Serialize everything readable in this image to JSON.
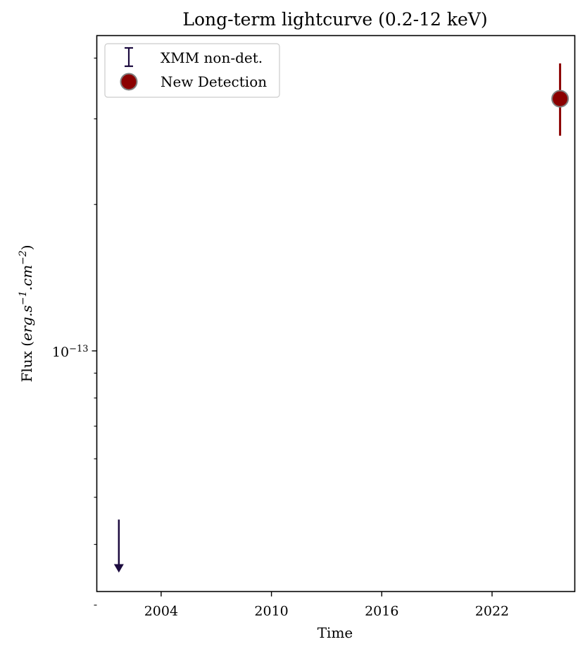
{
  "chart_data": {
    "type": "scatter",
    "title": "Long-term lightcurve (0.2-12 keV)",
    "xlabel": "Time",
    "ylabel": "Flux (erg.s⁻¹.cm⁻²)",
    "ylabel_parts": {
      "prefix": "Flux (",
      "base1": "erg.s",
      "sup1": "−1",
      "base2": ".cm",
      "sup2": "−2",
      "suffix": ")"
    },
    "x_scale": "time",
    "y_scale": "log",
    "xlim": [
      2000.5,
      2026.5
    ],
    "ylim": [
      3.2e-14,
      4.45e-13
    ],
    "x_ticks": [
      2004,
      2010,
      2016,
      2022
    ],
    "x_tick_labels": [
      "2004",
      "2010",
      "2016",
      "2022"
    ],
    "y_major_ticks": [
      1e-13
    ],
    "y_tick_label": {
      "base": "10",
      "exp": "−13"
    },
    "y_minor_ticks": [
      3e-14,
      4e-14,
      5e-14,
      6e-14,
      7e-14,
      8e-14,
      9e-14,
      2e-13,
      3e-13,
      4e-13
    ],
    "grid": false,
    "legend": {
      "placement": "top-left",
      "entries": [
        {
          "label": "XMM non-det.",
          "marker": "errorbar",
          "color": "#1c0b3f"
        },
        {
          "label": "New Detection",
          "marker": "circle",
          "color": "#8b0000",
          "edge": "#808080"
        }
      ]
    },
    "series": [
      {
        "name": "XMM non-det.",
        "kind": "upper_limit",
        "color": "#1c0b3f",
        "points": [
          {
            "x": 2001.7,
            "y_top": 4.5e-14,
            "y_bottom": 3.5e-14
          }
        ]
      },
      {
        "name": "New Detection",
        "kind": "detection",
        "color": "#8b0000",
        "edge": "#808080",
        "points": [
          {
            "x": 2025.7,
            "y": 3.3e-13,
            "y_low": 2.77e-13,
            "y_high": 3.9e-13
          }
        ]
      }
    ]
  }
}
